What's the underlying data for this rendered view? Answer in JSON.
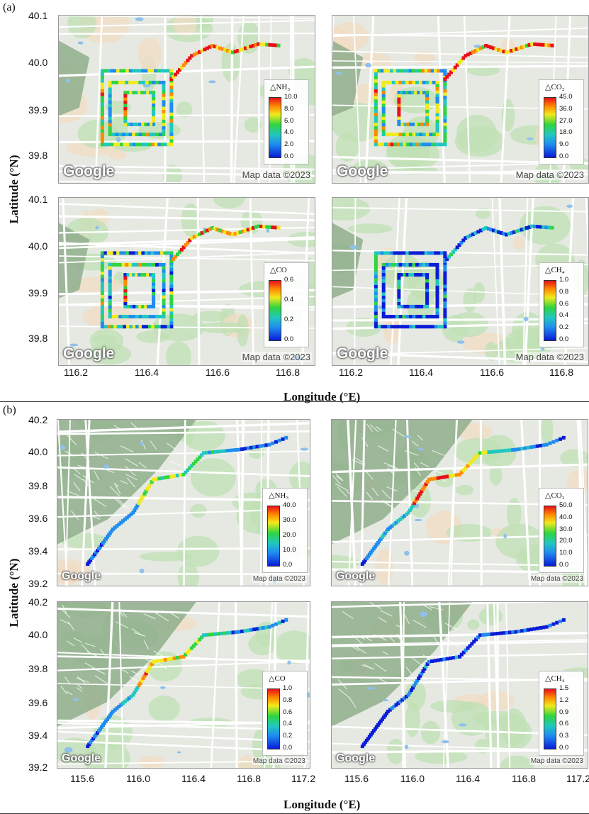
{
  "panels": {
    "a": {
      "label": "(a)",
      "ylabel": "Latitude (°N)",
      "xlabel": "Longitude (°E)",
      "lat_ticks": [
        "40.1",
        "40.0",
        "39.9",
        "39.8"
      ],
      "lon_ticks": [
        "116.2",
        "116.4",
        "116.6",
        "116.8"
      ]
    },
    "b": {
      "label": "(b)",
      "ylabel": "Latitude (°N)",
      "xlabel": "Longitude (°E)",
      "lat_ticks": [
        "40.2",
        "40.0",
        "39.8",
        "39.6",
        "39.4",
        "39.2"
      ],
      "lon_ticks": [
        "115.6",
        "116.0",
        "116.4",
        "116.8",
        "117.2"
      ]
    }
  },
  "maps": [
    {
      "id": "a-nh3",
      "legend": {
        "title": "△NH₃",
        "ticks": [
          "10.0",
          "8.0",
          "6.0",
          "4.0",
          "2.0",
          "0.0"
        ]
      },
      "google": "Google",
      "credit": "Map data ©2023"
    },
    {
      "id": "a-co2",
      "legend": {
        "title": "△CO₂",
        "ticks": [
          "45.0",
          "36.0",
          "27.0",
          "18.0",
          "9.0",
          "0.0"
        ]
      },
      "google": "Google",
      "credit": "Map data ©2023"
    },
    {
      "id": "a-co",
      "legend": {
        "title": "△CO",
        "ticks": [
          "0.6",
          "0.4",
          "0.2",
          "0.0"
        ]
      },
      "google": "Google",
      "credit": "Map data ©2023"
    },
    {
      "id": "a-ch4",
      "legend": {
        "title": "△CH₄",
        "ticks": [
          "1.0",
          "0.8",
          "0.6",
          "0.4",
          "0.2",
          "0.0"
        ]
      },
      "google": "Google",
      "credit": "Map data ©2023"
    },
    {
      "id": "b-nh3",
      "legend": {
        "title": "△NH₃",
        "ticks": [
          "40.0",
          "30.0",
          "20.0",
          "10.0",
          "0.0"
        ]
      },
      "google": "Google",
      "credit": "Map data ©2023"
    },
    {
      "id": "b-co2",
      "legend": {
        "title": "△CO₂",
        "ticks": [
          "50.0",
          "40.0",
          "30.0",
          "20.0",
          "10.0",
          "0.0"
        ]
      },
      "google": "Google",
      "credit": "Map data ©2023"
    },
    {
      "id": "b-co",
      "legend": {
        "title": "△CO",
        "ticks": [
          "1.0",
          "0.8",
          "0.6",
          "0.4",
          "0.2",
          "0.0"
        ]
      },
      "google": "Google",
      "credit": "Map data ©2023"
    },
    {
      "id": "b-ch4",
      "legend": {
        "title": "△CH₄",
        "ticks": [
          "1.5",
          "1.2",
          "0.9",
          "0.6",
          "0.3",
          "0.0"
        ]
      },
      "google": "Google",
      "credit": "Map data ©2023"
    }
  ],
  "colors": {
    "low": "#0a1cd6",
    "mid": "#30d440",
    "high": "#e8101a",
    "map_bg": "#e4e8e0",
    "park": "#b9dbb0",
    "road": "#ffffff"
  }
}
